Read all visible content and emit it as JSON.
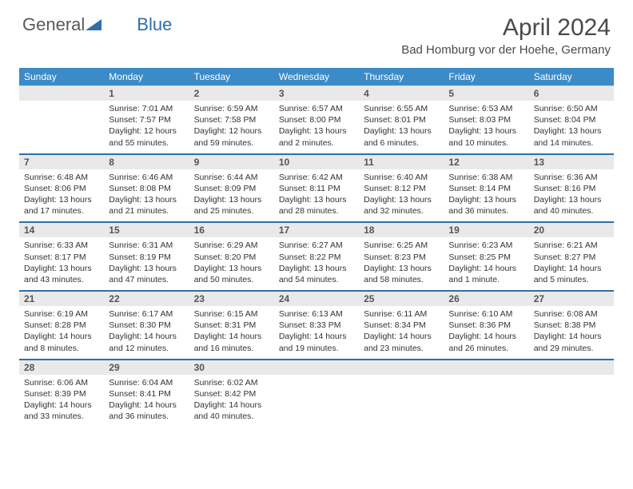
{
  "brand": {
    "part1": "General",
    "part2": "Blue"
  },
  "title": "April 2024",
  "location": "Bad Homburg vor der Hoehe, Germany",
  "colors": {
    "header_blue": "#3b8bc8",
    "rule_blue": "#2f6fa8",
    "daynum_bg": "#e9e9e9",
    "text_dark": "#4a4a4a"
  },
  "daysOfWeek": [
    "Sunday",
    "Monday",
    "Tuesday",
    "Wednesday",
    "Thursday",
    "Friday",
    "Saturday"
  ],
  "weeks": [
    {
      "nums": [
        "",
        "1",
        "2",
        "3",
        "4",
        "5",
        "6"
      ],
      "cells": [
        "",
        "Sunrise: 7:01 AM\nSunset: 7:57 PM\nDaylight: 12 hours and 55 minutes.",
        "Sunrise: 6:59 AM\nSunset: 7:58 PM\nDaylight: 12 hours and 59 minutes.",
        "Sunrise: 6:57 AM\nSunset: 8:00 PM\nDaylight: 13 hours and 2 minutes.",
        "Sunrise: 6:55 AM\nSunset: 8:01 PM\nDaylight: 13 hours and 6 minutes.",
        "Sunrise: 6:53 AM\nSunset: 8:03 PM\nDaylight: 13 hours and 10 minutes.",
        "Sunrise: 6:50 AM\nSunset: 8:04 PM\nDaylight: 13 hours and 14 minutes."
      ]
    },
    {
      "nums": [
        "7",
        "8",
        "9",
        "10",
        "11",
        "12",
        "13"
      ],
      "cells": [
        "Sunrise: 6:48 AM\nSunset: 8:06 PM\nDaylight: 13 hours and 17 minutes.",
        "Sunrise: 6:46 AM\nSunset: 8:08 PM\nDaylight: 13 hours and 21 minutes.",
        "Sunrise: 6:44 AM\nSunset: 8:09 PM\nDaylight: 13 hours and 25 minutes.",
        "Sunrise: 6:42 AM\nSunset: 8:11 PM\nDaylight: 13 hours and 28 minutes.",
        "Sunrise: 6:40 AM\nSunset: 8:12 PM\nDaylight: 13 hours and 32 minutes.",
        "Sunrise: 6:38 AM\nSunset: 8:14 PM\nDaylight: 13 hours and 36 minutes.",
        "Sunrise: 6:36 AM\nSunset: 8:16 PM\nDaylight: 13 hours and 40 minutes."
      ]
    },
    {
      "nums": [
        "14",
        "15",
        "16",
        "17",
        "18",
        "19",
        "20"
      ],
      "cells": [
        "Sunrise: 6:33 AM\nSunset: 8:17 PM\nDaylight: 13 hours and 43 minutes.",
        "Sunrise: 6:31 AM\nSunset: 8:19 PM\nDaylight: 13 hours and 47 minutes.",
        "Sunrise: 6:29 AM\nSunset: 8:20 PM\nDaylight: 13 hours and 50 minutes.",
        "Sunrise: 6:27 AM\nSunset: 8:22 PM\nDaylight: 13 hours and 54 minutes.",
        "Sunrise: 6:25 AM\nSunset: 8:23 PM\nDaylight: 13 hours and 58 minutes.",
        "Sunrise: 6:23 AM\nSunset: 8:25 PM\nDaylight: 14 hours and 1 minute.",
        "Sunrise: 6:21 AM\nSunset: 8:27 PM\nDaylight: 14 hours and 5 minutes."
      ]
    },
    {
      "nums": [
        "21",
        "22",
        "23",
        "24",
        "25",
        "26",
        "27"
      ],
      "cells": [
        "Sunrise: 6:19 AM\nSunset: 8:28 PM\nDaylight: 14 hours and 8 minutes.",
        "Sunrise: 6:17 AM\nSunset: 8:30 PM\nDaylight: 14 hours and 12 minutes.",
        "Sunrise: 6:15 AM\nSunset: 8:31 PM\nDaylight: 14 hours and 16 minutes.",
        "Sunrise: 6:13 AM\nSunset: 8:33 PM\nDaylight: 14 hours and 19 minutes.",
        "Sunrise: 6:11 AM\nSunset: 8:34 PM\nDaylight: 14 hours and 23 minutes.",
        "Sunrise: 6:10 AM\nSunset: 8:36 PM\nDaylight: 14 hours and 26 minutes.",
        "Sunrise: 6:08 AM\nSunset: 8:38 PM\nDaylight: 14 hours and 29 minutes."
      ]
    },
    {
      "nums": [
        "28",
        "29",
        "30",
        "",
        "",
        "",
        ""
      ],
      "cells": [
        "Sunrise: 6:06 AM\nSunset: 8:39 PM\nDaylight: 14 hours and 33 minutes.",
        "Sunrise: 6:04 AM\nSunset: 8:41 PM\nDaylight: 14 hours and 36 minutes.",
        "Sunrise: 6:02 AM\nSunset: 8:42 PM\nDaylight: 14 hours and 40 minutes.",
        "",
        "",
        "",
        ""
      ]
    }
  ]
}
